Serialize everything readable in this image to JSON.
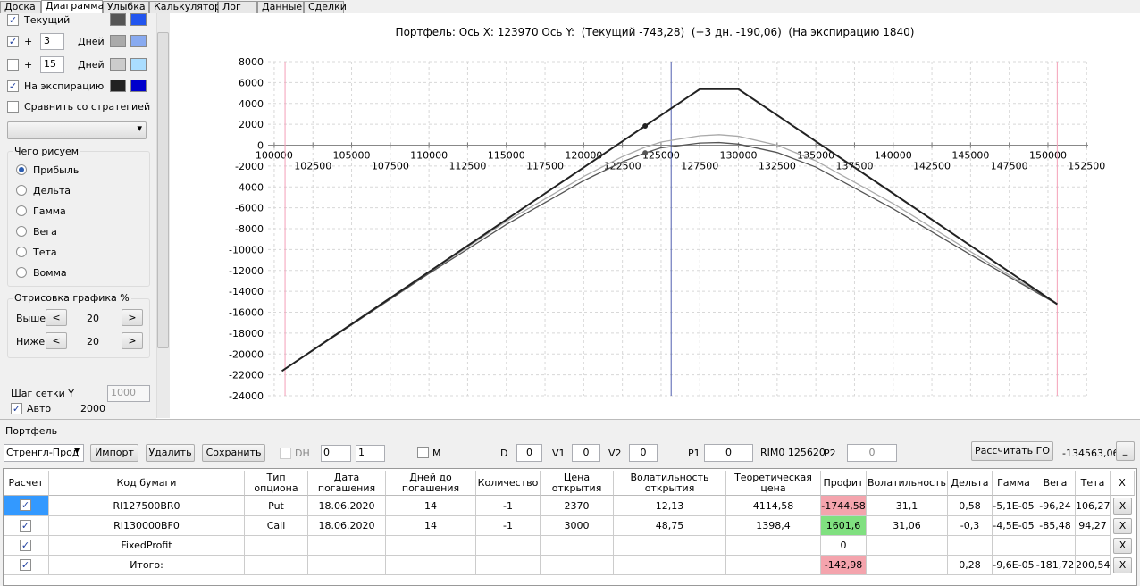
{
  "tabs": {
    "items": [
      "Доска",
      "Диаграмма",
      "Улыбка",
      "Калькулятор",
      "Лог",
      "Данные",
      "Сделки"
    ],
    "active": 1
  },
  "left_panel": {
    "lines": [
      {
        "label": "Текущий",
        "checked": true,
        "colors": [
          "#555555",
          "#2255ee"
        ]
      },
      {
        "label": "+",
        "days": "3",
        "unit": "Дней",
        "checked": true,
        "colors": [
          "#aaaaaa",
          "#88aaf0"
        ]
      },
      {
        "label": "+",
        "days": "15",
        "unit": "Дней",
        "checked": false,
        "colors": [
          "#cccccc",
          "#aaddff"
        ]
      },
      {
        "label": "На экспирацию",
        "checked": true,
        "colors": [
          "#222222",
          "#0000cc"
        ]
      }
    ],
    "compare": {
      "label": "Сравнить со стратегией",
      "checked": false
    },
    "draw_group": {
      "title": "Чего рисуем",
      "options": [
        "Прибыль",
        "Дельта",
        "Гамма",
        "Вега",
        "Тета",
        "Вомма"
      ],
      "selected": 0
    },
    "range_group": {
      "title": "Отрисовка графика %",
      "buttons": [
        "<",
        ">"
      ],
      "rows": [
        {
          "label": "Выше",
          "value": "20"
        },
        {
          "label": "Ниже",
          "value": "20"
        }
      ]
    },
    "grid_step": {
      "label": "Шаг сетки Y",
      "value": "1000"
    },
    "auto": {
      "label": "Авто",
      "checked": true,
      "value": "2000"
    }
  },
  "chart_data": {
    "type": "line",
    "title": "Портфель: Ось X: 123970 Ось Y:  (Текущий -743,28)  (+3 дн. -190,06)  (На экспирацию 1840)",
    "x": [
      100500,
      110000,
      115000,
      120000,
      122500,
      123970,
      125000,
      127500,
      128750,
      130000,
      132500,
      135000,
      140000,
      145000,
      150600
    ],
    "series": [
      {
        "color": "#aaaaaa",
        "values": [
          -21630,
          -12200,
          -7300,
          -3000,
          -1100,
          -190.06,
          300,
          900,
          1000,
          850,
          0,
          -1500,
          -5600,
          -10200,
          -15230
        ]
      },
      {
        "color": "#555555",
        "values": [
          -21630,
          -12300,
          -7600,
          -3400,
          -1600,
          -743.28,
          -250,
          200,
          250,
          100,
          -700,
          -2100,
          -6100,
          -10500,
          -15230
        ]
      },
      {
        "color": "#222222",
        "values": [
          -21630,
          -12130,
          -7130,
          -2130,
          370,
          1840,
          2870,
          5370,
          5370,
          5370,
          2870,
          370,
          -4630,
          -9630,
          -15230
        ]
      }
    ],
    "points": [
      {
        "x": 123970,
        "y": 1840,
        "color": "#222222"
      },
      {
        "x": 123970,
        "y": -743.28,
        "color": "#555555"
      }
    ],
    "vlines": [
      {
        "x": 100700,
        "color": "#f4a0b8"
      },
      {
        "x": 150600,
        "color": "#f4a0b8"
      },
      {
        "x": 125650,
        "color": "#5060b0"
      }
    ],
    "xlim": [
      99600,
      152600
    ],
    "ylim": [
      -24000,
      8000
    ],
    "xticks": [
      100000,
      102500,
      105000,
      107500,
      110000,
      112500,
      115000,
      117500,
      120000,
      122500,
      125000,
      127500,
      130000,
      132500,
      135000,
      137500,
      140000,
      142500,
      145000,
      147500,
      150000,
      152500
    ],
    "yticks": [
      -24000,
      -22000,
      -20000,
      -18000,
      -16000,
      -14000,
      -12000,
      -10000,
      -8000,
      -6000,
      -4000,
      -2000,
      0,
      2000,
      4000,
      6000,
      8000
    ],
    "grid": true
  },
  "portfolio": {
    "title": "Портфель",
    "toolbar": {
      "strategy": "Стренгл-Прод",
      "buttons": [
        "Импорт",
        "Удалить",
        "Сохранить"
      ],
      "dh": {
        "label": "DH",
        "checked": false
      },
      "spin1": "0",
      "spin2": "1",
      "m": {
        "label": "M",
        "checked": false
      },
      "fields": [
        {
          "label": "D",
          "value": "0"
        },
        {
          "label": "V1",
          "value": "0"
        },
        {
          "label": "V2",
          "value": "0"
        },
        {
          "label": "P1",
          "value": "0"
        }
      ],
      "rim": "RIM0 125620",
      "p2": {
        "label": "P2",
        "value": "0"
      },
      "calc": "Рассчитать ГО",
      "go": "-134563,06",
      "min": "_"
    },
    "table": {
      "columns": [
        "Расчет",
        "Код бумаги",
        "Тип опциона",
        "Дата погашения",
        "Дней до погашения",
        "Количество",
        "Цена открытия",
        "Волатильность открытия",
        "Теоретическая цена",
        "Профит",
        "Волатильность",
        "Дельта",
        "Гамма",
        "Вега",
        "Тета",
        "X"
      ],
      "rows": [
        {
          "checked": true,
          "cells": [
            "RI127500BR0",
            "Put",
            "18.06.2020",
            "14",
            "-1",
            "2370",
            "12,13",
            "4114,58",
            "-1744,58",
            "31,1",
            "0,58",
            "-5,1E-05",
            "-96,24",
            "106,27"
          ],
          "remove": "X",
          "profit_color": "#f4a4ad"
        },
        {
          "checked": true,
          "cells": [
            "RI130000BF0",
            "Call",
            "18.06.2020",
            "14",
            "-1",
            "3000",
            "48,75",
            "1398,4",
            "1601,6",
            "31,06",
            "-0,3",
            "-4,5E-05",
            "-85,48",
            "94,27"
          ],
          "remove": "X",
          "profit_color": "#80e080"
        },
        {
          "checked": true,
          "cells": [
            "FixedProfit",
            null,
            null,
            null,
            null,
            null,
            null,
            null,
            "0",
            null,
            null,
            null,
            null,
            null
          ],
          "remove": "X"
        },
        {
          "checked": true,
          "cells": [
            "Итого:",
            null,
            null,
            null,
            null,
            null,
            null,
            null,
            "-142,98",
            null,
            "0,28",
            "-9,6E-05",
            "-181,72",
            "200,54"
          ],
          "remove": "X",
          "profit_color": "#f4a4ad"
        }
      ]
    }
  }
}
